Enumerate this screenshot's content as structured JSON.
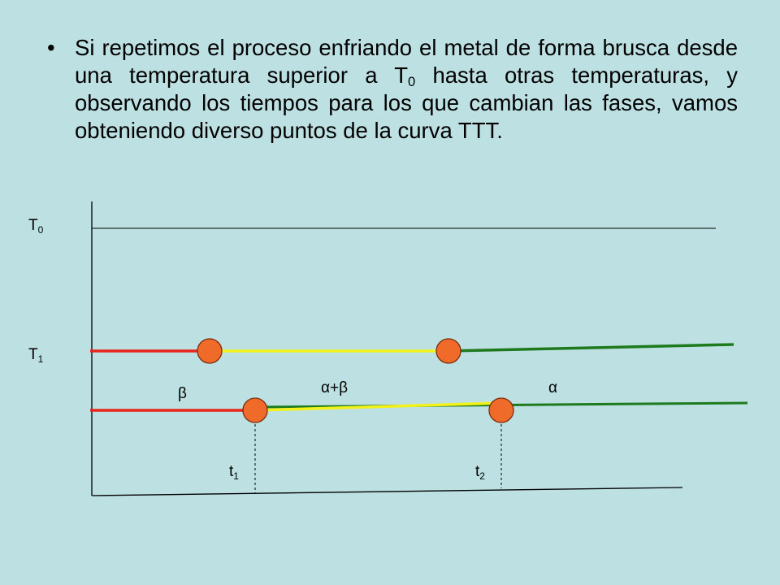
{
  "slide": {
    "bullet_char": "•",
    "text_part1": "Si repetimos el proceso enfriando el metal  de  forma brusca desde  una temperatura superior  a T",
    "text_sub": "0",
    "text_part2": "  hasta otras temperaturas, y observando los tiempos para los que cambian  las  fases, vamos obteniendo diverso puntos de la curva TTT."
  },
  "diagram": {
    "labels": {
      "t0_main": "T",
      "t0_sub": "0",
      "t1_main": "T",
      "t1_sub": "1",
      "beta": "β",
      "alpha_beta": "α+β",
      "alpha": "α",
      "time1_main": "t",
      "time1_sub": "1",
      "time2_main": "t",
      "time2_sub": "2"
    },
    "colors": {
      "axis": "#000000",
      "phase_beta": "#e8251b",
      "phase_mix": "#f2f21a",
      "phase_alpha": "#1d7a1d",
      "marker_fill": "#f06a2a",
      "marker_stroke": "#7a2e10"
    }
  }
}
